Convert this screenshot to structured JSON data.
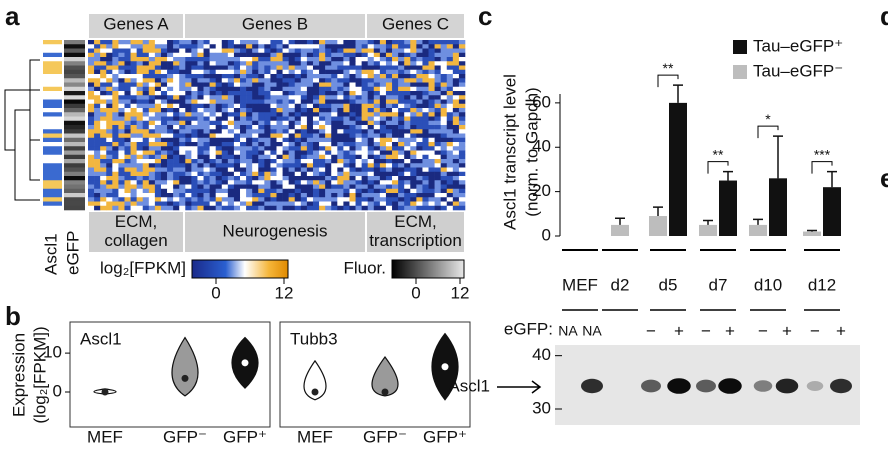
{
  "panel_labels": [
    "a",
    "b",
    "c",
    "d",
    "e"
  ],
  "heatmap": {
    "groups": [
      "Genes A",
      "Genes B",
      "Genes C"
    ],
    "annotations": [
      [
        "ECM,",
        "collagen"
      ],
      [
        "Neurogenesis"
      ],
      [
        "ECM,",
        "transcription"
      ]
    ],
    "row_labels": [
      "Ascl1",
      "eGFP"
    ],
    "colorbars": [
      {
        "label": "log₂[FPKM]",
        "ticks": [
          0,
          12
        ]
      },
      {
        "label": "Fluor.",
        "ticks": [
          0,
          12
        ]
      }
    ]
  },
  "chart_data": [
    {
      "type": "violin",
      "title": "Ascl1",
      "y_label": [
        "Expression",
        "(log₂[FPKM])"
      ],
      "categories": [
        "MEF",
        "GFP⁻",
        "GFP⁺"
      ],
      "colors": [
        "#ffffff",
        "#9a9a9a",
        "#111111"
      ],
      "values": [
        0,
        3.5,
        7.5
      ],
      "ranges": [
        [
          -0.5,
          0.8
        ],
        [
          -1,
          14
        ],
        [
          1,
          14
        ]
      ],
      "ylim": [
        -9,
        18
      ],
      "yticks": [
        0,
        10
      ]
    },
    {
      "type": "violin",
      "title": "Tubb3",
      "categories": [
        "MEF",
        "GFP⁻",
        "GFP⁺"
      ],
      "colors": [
        "#ffffff",
        "#9a9a9a",
        "#111111"
      ],
      "values": [
        0,
        0,
        6.5
      ],
      "ranges": [
        [
          -2,
          8
        ],
        [
          -1,
          9
        ],
        [
          -2,
          15
        ]
      ],
      "ylim": [
        -9,
        18
      ],
      "yticks": [
        0,
        10
      ]
    },
    {
      "type": "bar",
      "y_label": [
        "Ascl1 transcript level",
        "(norm. to Gapdh)"
      ],
      "categories": [
        "MEF",
        "d2",
        "d5",
        "d7",
        "d10",
        "d12"
      ],
      "series": [
        {
          "name": "Tau–eGFP⁺",
          "color": "#111111",
          "values": [
            null,
            null,
            60,
            25,
            26,
            22
          ],
          "errors": [
            null,
            null,
            8,
            4,
            19,
            7
          ]
        },
        {
          "name": "Tau–eGFP⁻",
          "color": "#bdbdbd",
          "values": [
            null,
            5,
            9,
            5,
            5,
            2
          ],
          "errors": [
            null,
            3,
            4,
            2,
            2.5,
            0.5
          ]
        }
      ],
      "significance": [
        null,
        null,
        "**",
        "**",
        "*",
        "***"
      ],
      "ylim": [
        0,
        64
      ],
      "yticks": [
        0,
        20,
        40,
        60
      ]
    },
    {
      "type": "blot",
      "row_label": "eGFP:",
      "lanes": [
        "NA",
        "NA",
        "−",
        "+",
        "−",
        "+",
        "−",
        "+",
        "−",
        "+"
      ],
      "band_label": "Ascl1",
      "marker_ticks": [
        40,
        30
      ],
      "ylim": [
        27,
        42
      ]
    }
  ]
}
